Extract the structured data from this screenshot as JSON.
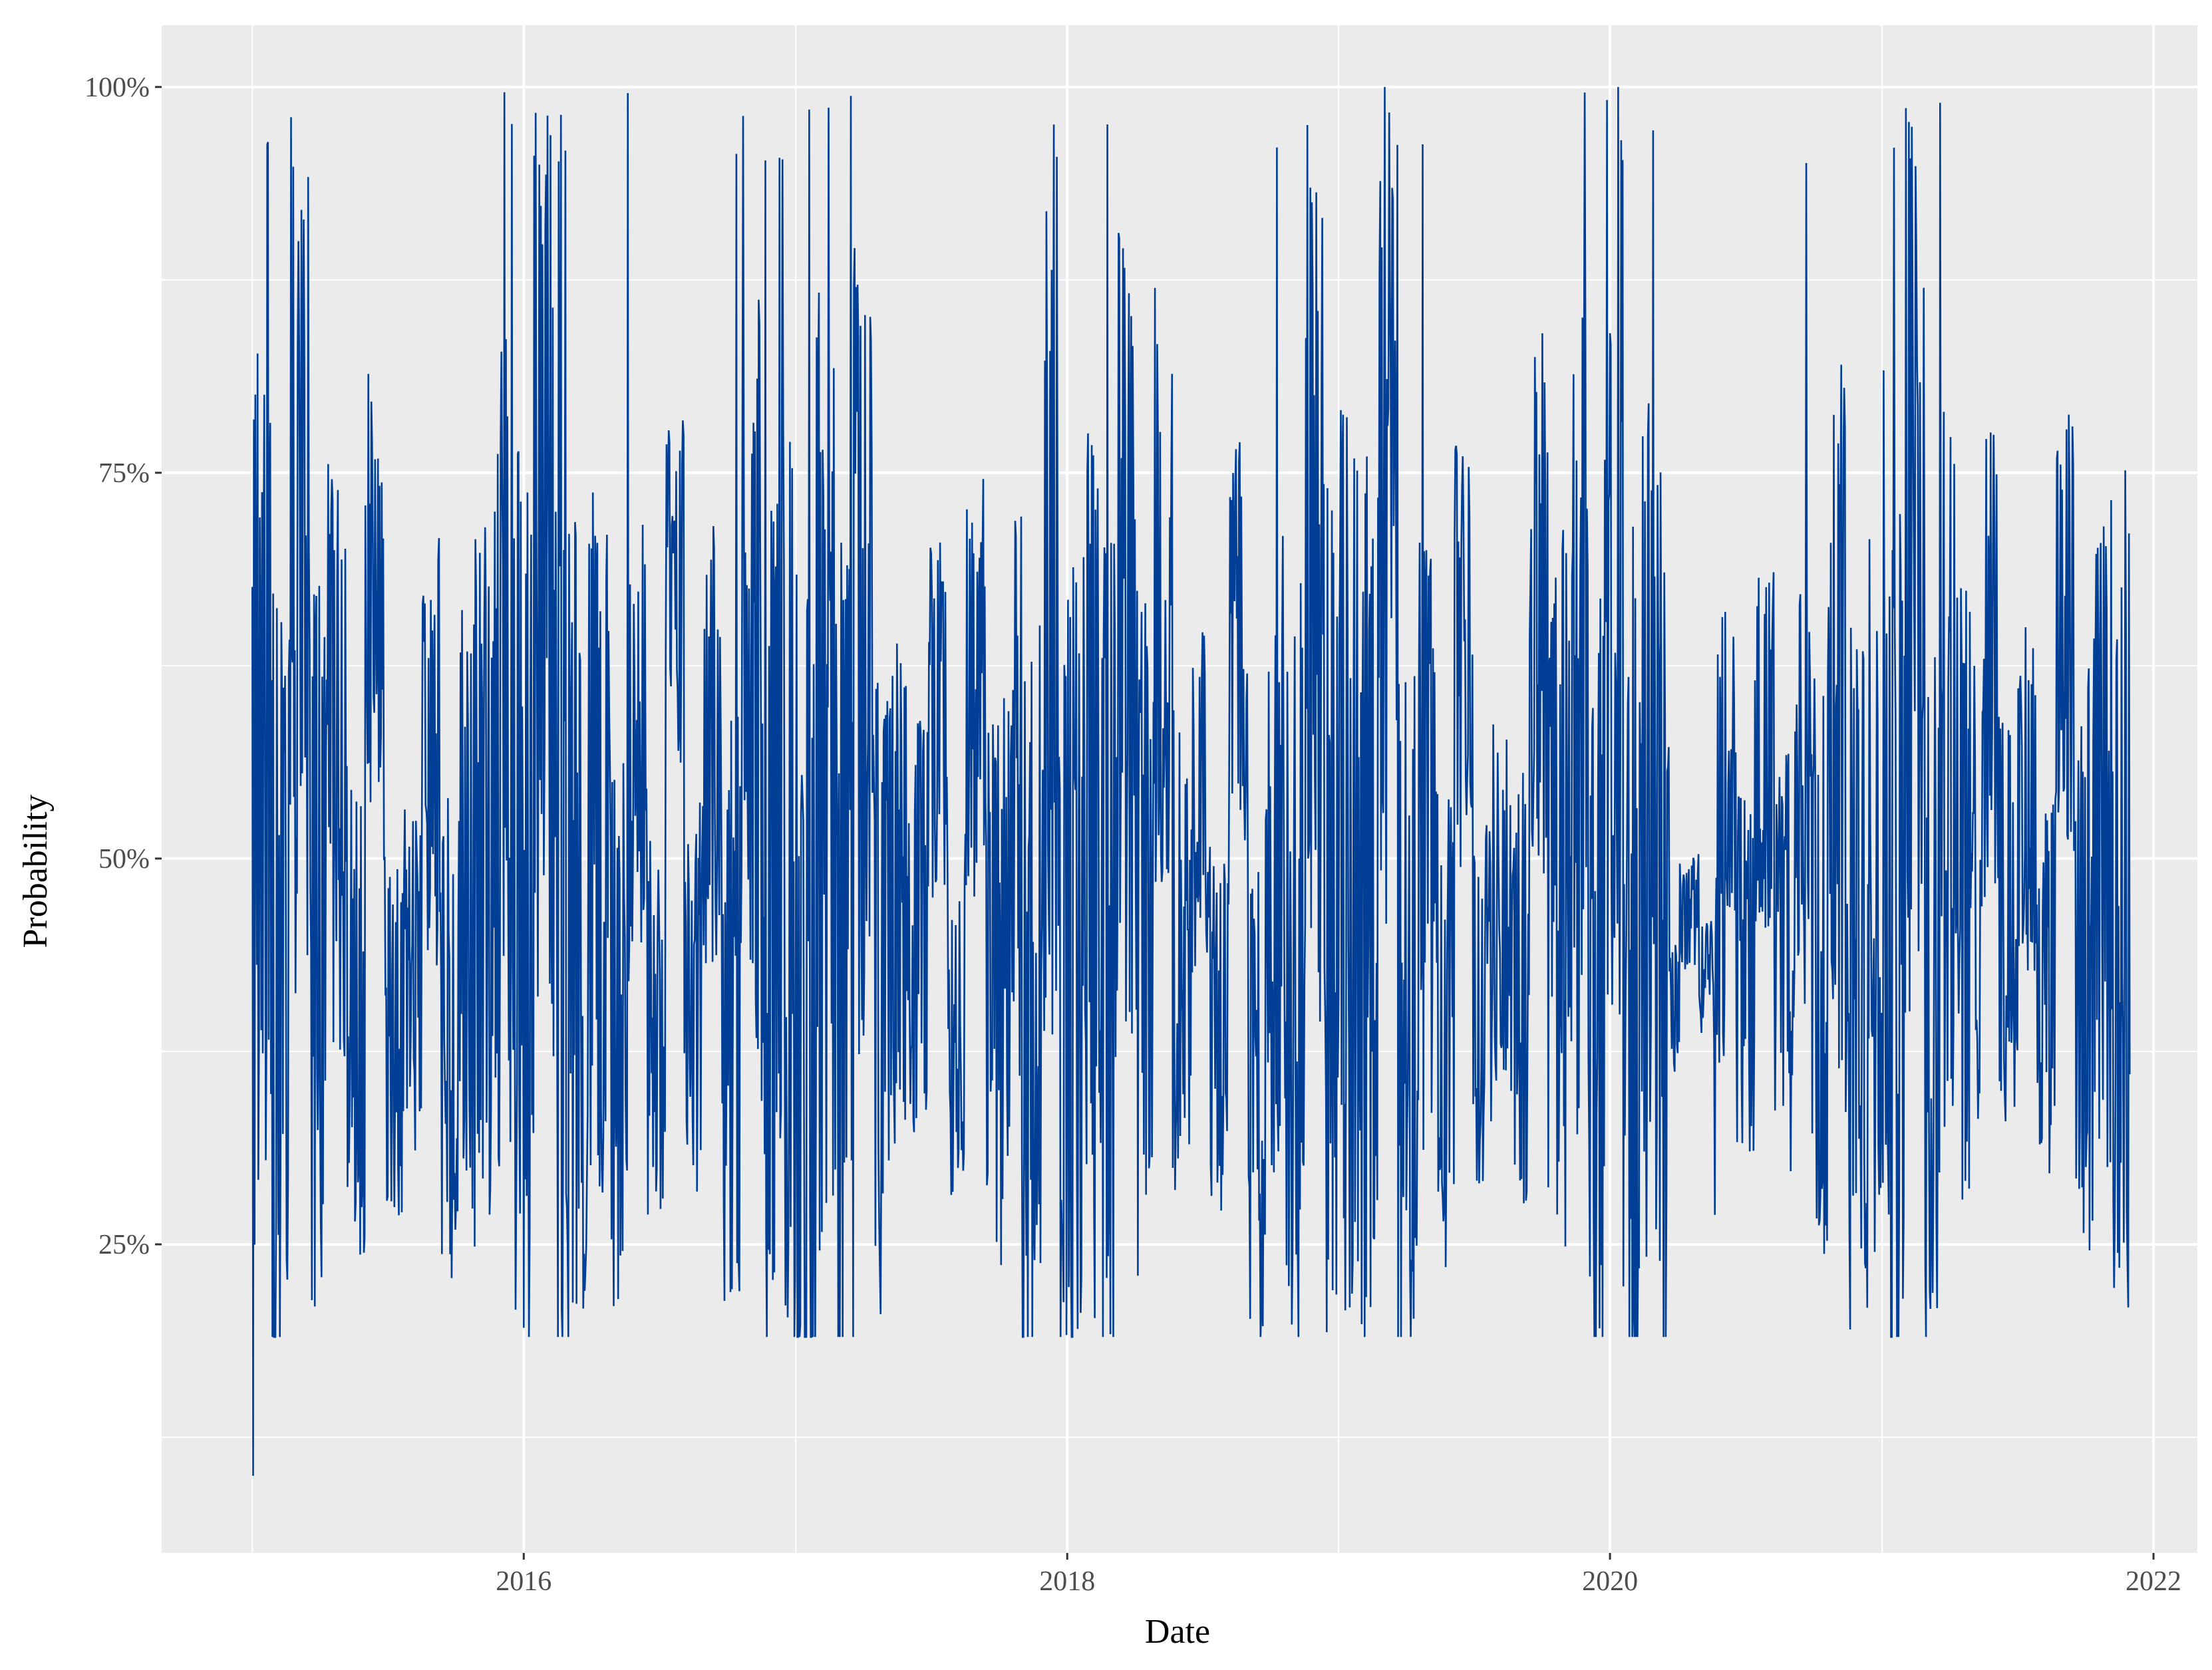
{
  "chart_data": {
    "type": "line",
    "title": "",
    "xlabel": "Date",
    "ylabel": "Probability",
    "x_ticks": [
      "2016",
      "2018",
      "2020",
      "2022"
    ],
    "y_ticks": [
      "25%",
      "50%",
      "75%",
      "100%"
    ],
    "xlim": [
      "2014-09-01",
      "2022-03-01"
    ],
    "ylim": [
      0.05,
      1.04
    ],
    "grid": true,
    "legend": "none",
    "series": [
      {
        "color": "#003f95",
        "x_start": "2015-01-01",
        "x_end": "2021-11-30",
        "x_step": "1 day",
        "values": [
          0.55,
          0.1,
          0.93,
          0.28,
          0.62,
          0.23,
          0.99,
          0.31,
          0.41,
          0.73,
          0.26,
          0.42,
          0.37,
          0.6,
          0.31,
          0.84,
          0.27,
          0.45,
          0.55,
          0.3,
          0.79,
          0.28,
          0.96,
          0.26,
          0.62,
          0.19,
          0.78,
          0.32,
          0.43,
          0.23,
          0.66,
          0.3,
          0.84,
          0.28,
          0.43,
          0.38,
          0.71,
          0.23,
          0.77,
          0.34,
          0.54,
          0.27,
          0.95,
          0.3,
          0.48,
          0.26,
          0.74,
          0.33,
          0.88,
          0.35,
          0.64,
          0.29,
          0.96,
          0.2,
          0.51,
          0.3,
          0.87,
          0.37,
          0.46,
          0.33,
          0.99,
          0.27,
          0.57,
          0.31,
          0.92,
          0.35,
          0.49,
          0.27,
          0.88,
          0.38,
          0.62,
          0.3,
          1.0,
          0.29,
          0.56,
          0.36,
          0.99,
          0.31,
          0.55,
          0.29,
          0.66,
          0.33,
          0.57,
          0.38,
          0.7,
          0.29,
          0.6,
          0.34,
          0.99,
          0.28,
          0.57,
          0.36,
          0.79,
          0.4,
          0.63,
          0.35,
          0.98,
          0.41,
          0.52,
          0.43
        ],
        "notes": "dense daily series; values shown are representative samples spanning the observed range"
      }
    ]
  }
}
